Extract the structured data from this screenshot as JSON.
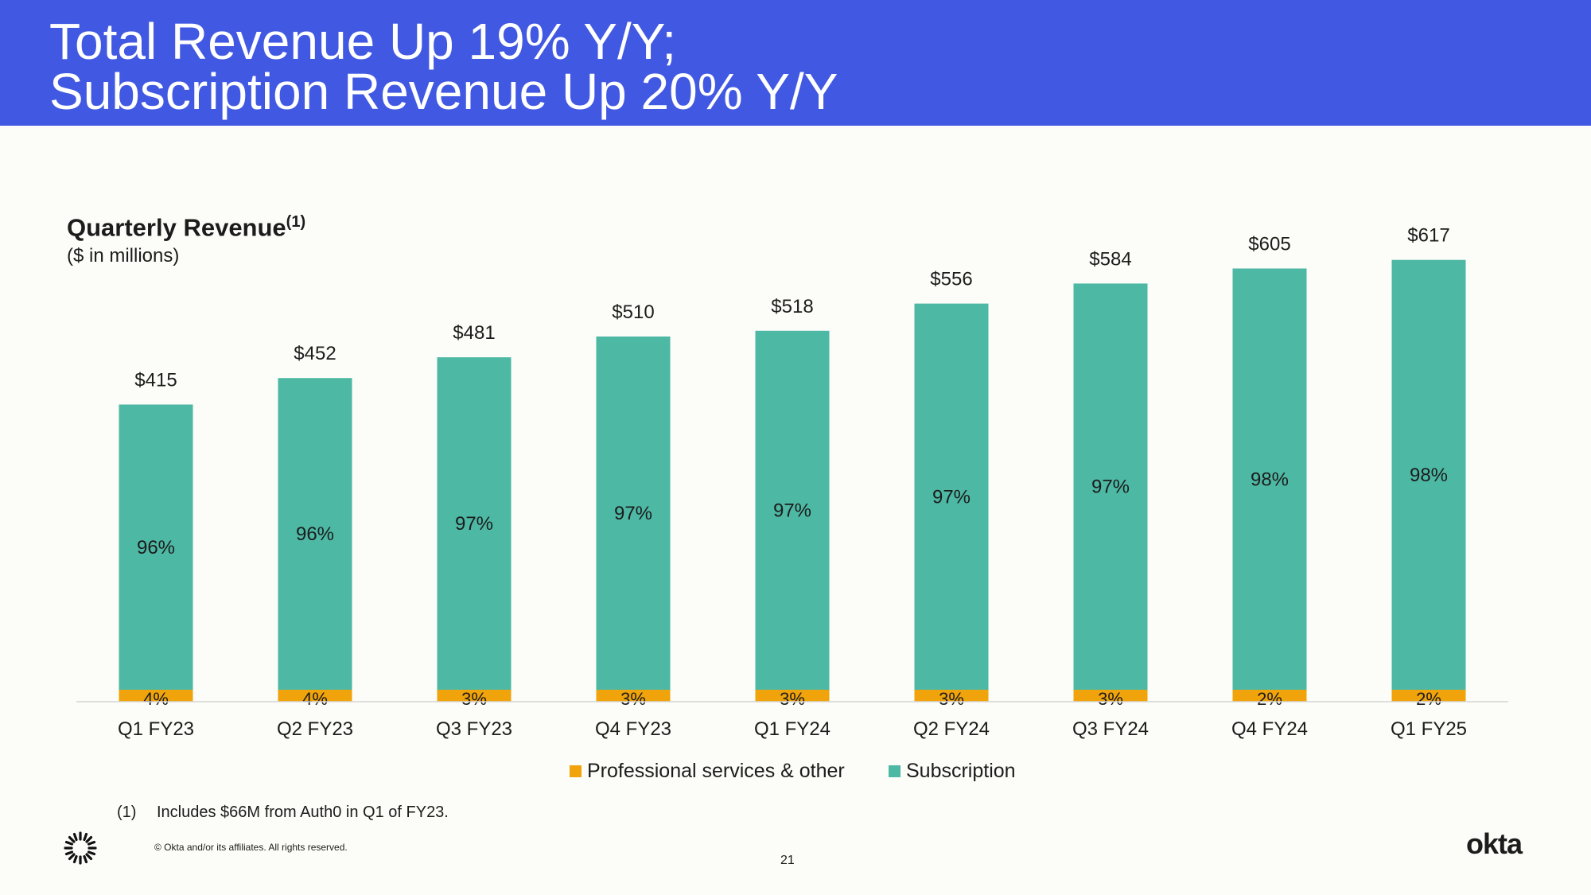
{
  "header": {
    "title_line1": "Total Revenue Up 19% Y/Y;",
    "title_line2": "Subscription Revenue Up 20% Y/Y"
  },
  "chart_data": {
    "type": "bar",
    "stacked": true,
    "title": "Quarterly Revenue",
    "title_superscript": "(1)",
    "subtitle": "($ in millions)",
    "categories": [
      "Q1 FY23",
      "Q2 FY23",
      "Q3 FY23",
      "Q4 FY23",
      "Q1 FY24",
      "Q2 FY24",
      "Q3 FY24",
      "Q4 FY24",
      "Q1 FY25"
    ],
    "totals": [
      415,
      452,
      481,
      510,
      518,
      556,
      584,
      605,
      617
    ],
    "total_labels": [
      "$415",
      "$452",
      "$481",
      "$510",
      "$518",
      "$556",
      "$584",
      "$605",
      "$617"
    ],
    "series": [
      {
        "name": "Professional services & other",
        "color": "#f0a30a",
        "share_pct": [
          4,
          4,
          3,
          3,
          3,
          3,
          3,
          2,
          2
        ],
        "labels": [
          "4%",
          "4%",
          "3%",
          "3%",
          "3%",
          "3%",
          "3%",
          "2%",
          "2%"
        ]
      },
      {
        "name": "Subscription",
        "color": "#4db8a4",
        "share_pct": [
          96,
          96,
          97,
          97,
          97,
          97,
          97,
          98,
          98
        ],
        "labels": [
          "96%",
          "96%",
          "97%",
          "97%",
          "97%",
          "97%",
          "97%",
          "98%",
          "98%"
        ]
      }
    ],
    "legend_position": "bottom",
    "grid": false
  },
  "legend": {
    "services_label": "Professional services & other",
    "subscription_label": "Subscription",
    "services_color": "#f0a30a",
    "subscription_color": "#4db8a4"
  },
  "footer": {
    "footnote_marker": "(1)",
    "footnote_text": "Includes $66M from Auth0 in Q1 of FY23.",
    "copyright": "© Okta and/or its affiliates. All rights reserved.",
    "page_number": "21",
    "brand": "okta",
    "logo_icon": "okta-burst-icon"
  }
}
